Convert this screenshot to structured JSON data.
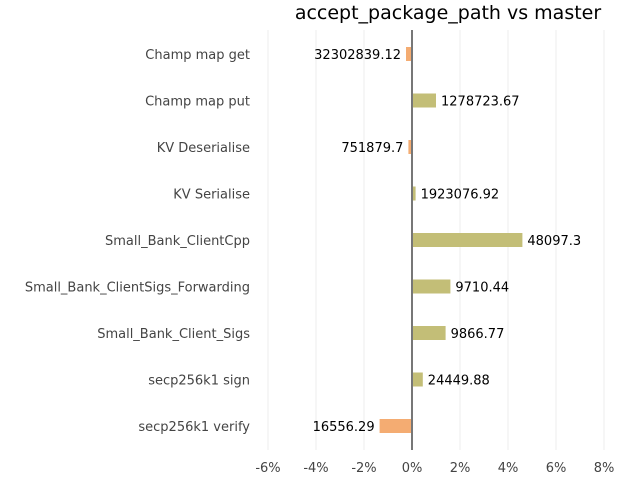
{
  "chart_data": {
    "type": "bar",
    "orientation": "horizontal",
    "title": "accept_package_path vs master",
    "xlabel": "",
    "ylabel": "",
    "xlim": [
      -6.5,
      8.5
    ],
    "x_ticks": [
      -6,
      -4,
      -2,
      0,
      2,
      4,
      6,
      8
    ],
    "x_tick_labels": [
      "-6%",
      "-4%",
      "-2%",
      "0%",
      "2%",
      "4%",
      "6%",
      "8%"
    ],
    "grid": "vertical",
    "legend": "none",
    "colors": {
      "positive": "#c3be77",
      "negative": "#f4ac72",
      "zero_line": "#777777"
    },
    "categories": [
      "Champ map get",
      "Champ map put",
      "KV Deserialise",
      "KV Serialise",
      "Small_Bank_ClientCpp",
      "Small_Bank_ClientSigs_Forwarding",
      "Small_Bank_Client_Sigs",
      "secp256k1 sign",
      "secp256k1 verify"
    ],
    "values": [
      -0.25,
      1.0,
      -0.15,
      0.15,
      4.6,
      1.6,
      1.4,
      0.45,
      -1.35
    ],
    "data_labels": [
      "32302839.12",
      "1278723.67",
      "751879.7",
      "1923076.92",
      "48097.3",
      "9710.44",
      "9866.77",
      "24449.88",
      "16556.29"
    ]
  }
}
